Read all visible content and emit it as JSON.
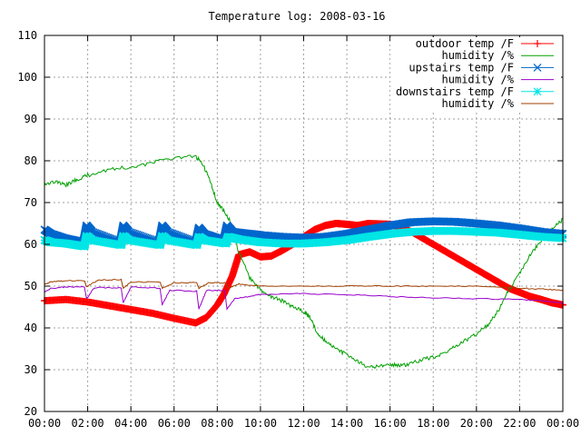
{
  "chart_data": {
    "type": "line",
    "title": "Temperature log: 2008-03-16",
    "xlabel": "",
    "ylabel": "",
    "xlim": [
      0,
      24
    ],
    "ylim": [
      20,
      110
    ],
    "grid": true,
    "legend_position": "top-right",
    "x_tick_labels": [
      "00:00",
      "02:00",
      "04:00",
      "06:00",
      "08:00",
      "10:00",
      "12:00",
      "14:00",
      "16:00",
      "18:00",
      "20:00",
      "22:00",
      "00:00"
    ],
    "y_tick_labels": [
      "20",
      "30",
      "40",
      "50",
      "60",
      "70",
      "80",
      "90",
      "100",
      "110"
    ],
    "series": [
      {
        "name": "outdoor temp /F",
        "color": "#ff0000",
        "marker": "plus",
        "x": [
          0,
          1,
          2,
          3,
          4,
          5,
          6,
          7,
          7.5,
          8,
          8.3,
          8.7,
          9,
          9.5,
          10,
          10.5,
          11,
          11.5,
          12,
          12.5,
          13,
          13.5,
          14,
          14.5,
          15,
          16,
          16.5,
          17,
          17.5,
          18,
          18.5,
          19,
          19.5,
          20,
          20.5,
          21,
          21.5,
          22,
          22.5,
          23,
          23.5,
          24
        ],
        "y": [
          46.5,
          46.8,
          46.2,
          45.3,
          44.4,
          43.5,
          42.3,
          41.2,
          42.5,
          45.5,
          48,
          52.5,
          57.5,
          58.2,
          57,
          57.2,
          58.5,
          60,
          61.8,
          63.5,
          64.5,
          65,
          64.8,
          64.5,
          65,
          64.8,
          64,
          63,
          61.5,
          60,
          58.5,
          57,
          55.5,
          54,
          52.5,
          51,
          49.5,
          48.5,
          47.5,
          46.8,
          46,
          45.5
        ]
      },
      {
        "name": "humidity /%",
        "color": "#00a000",
        "marker": "none",
        "x": [
          0,
          0.5,
          1,
          1.5,
          2,
          3,
          4,
          5,
          6,
          7,
          7.3,
          7.6,
          8,
          8.3,
          8.6,
          9,
          9.5,
          10,
          10.5,
          11,
          11.5,
          12,
          12.3,
          12.6,
          13,
          13.5,
          14,
          14.5,
          15,
          15.5,
          16,
          16.5,
          17,
          17.5,
          18,
          18.5,
          19,
          19.5,
          20,
          20.5,
          21,
          21.5,
          22,
          22.5,
          23,
          23.5,
          24
        ],
        "y": [
          74.5,
          75,
          74.2,
          75.5,
          76.5,
          78,
          78.5,
          79.5,
          80.8,
          81,
          79.5,
          76,
          70,
          68,
          65.5,
          58,
          52,
          49,
          47.5,
          46.5,
          45,
          44,
          42.5,
          39,
          37,
          35,
          33.5,
          32,
          30.5,
          30.8,
          31.2,
          31,
          31.5,
          32.5,
          33,
          34,
          35.5,
          37,
          38.5,
          40.5,
          44,
          49,
          53,
          57.5,
          61,
          63.5,
          66
        ]
      },
      {
        "name": "upstairs temp /F",
        "color": "#0066cc",
        "marker": "x",
        "x": [
          0,
          0.3,
          0.9,
          1.8,
          1.95,
          2.2,
          3.5,
          3.65,
          3.9,
          5.3,
          5.45,
          5.7,
          7,
          7.15,
          7.4,
          8.3,
          8.45,
          8.7,
          9.5,
          10,
          11,
          12,
          13,
          14,
          15,
          16,
          17,
          18,
          19,
          20,
          21,
          22,
          23,
          24
        ],
        "y": [
          63.5,
          62.5,
          61.5,
          60.5,
          64.5,
          63,
          60.5,
          64.5,
          63,
          60.5,
          64.5,
          63,
          60.5,
          64,
          62.5,
          61,
          64.5,
          63,
          62.5,
          62.2,
          61.8,
          61.6,
          61.8,
          62.5,
          63.5,
          64.5,
          65.3,
          65.5,
          65.4,
          65,
          64.5,
          63.8,
          63,
          62.5
        ]
      },
      {
        "name": "humidity /%",
        "color": "#9900cc",
        "marker": "none",
        "x": [
          0,
          0.3,
          1,
          1.85,
          1.95,
          2.3,
          3.55,
          3.65,
          4,
          5.35,
          5.45,
          5.8,
          7.05,
          7.15,
          7.5,
          8.35,
          8.45,
          8.8,
          9.5,
          10,
          12,
          14,
          16,
          18,
          20,
          22,
          23,
          24
        ],
        "y": [
          48.5,
          49.5,
          49.8,
          49.8,
          47,
          49.6,
          49.6,
          46,
          49.8,
          49.5,
          45.5,
          49,
          48.8,
          44.5,
          49,
          49,
          44.5,
          47,
          47.5,
          48,
          48.2,
          48,
          47.5,
          47.2,
          47,
          46.8,
          46.5,
          46
        ]
      },
      {
        "name": "downstairs temp /F",
        "color": "#00e5e5",
        "marker": "star",
        "x": [
          0,
          0.3,
          1,
          1.85,
          1.95,
          2.2,
          3.55,
          3.65,
          3.9,
          5.35,
          5.45,
          5.7,
          7.05,
          7.15,
          7.4,
          8.4,
          8.5,
          9,
          10,
          11,
          12,
          13,
          14,
          15,
          16,
          17,
          18,
          19,
          20,
          21,
          22,
          23,
          24
        ],
        "y": [
          61,
          60.5,
          60.2,
          59.5,
          62,
          61,
          59.8,
          62,
          61,
          59.8,
          62,
          61,
          59.8,
          61.8,
          61,
          60.2,
          61.8,
          61.2,
          60.5,
          60.2,
          60.2,
          60.5,
          61,
          61.8,
          62.5,
          63,
          63.2,
          63.2,
          63,
          62.8,
          62.3,
          61.8,
          61.5
        ]
      },
      {
        "name": "humidity /%",
        "color": "#a04000",
        "marker": "none",
        "x": [
          0,
          0.3,
          1,
          1.85,
          1.95,
          2.5,
          3.55,
          3.65,
          4,
          5.35,
          5.45,
          6,
          7.05,
          7.15,
          7.6,
          8.4,
          8.5,
          9,
          10,
          12,
          14,
          16,
          18,
          20,
          22,
          23,
          24
        ],
        "y": [
          50.5,
          51,
          51.3,
          51.3,
          49.8,
          51.5,
          51.5,
          49.5,
          51,
          51,
          49.5,
          50.8,
          50.8,
          49.5,
          50.8,
          50.8,
          49.5,
          50.5,
          50,
          50,
          50,
          50,
          50,
          50,
          49.5,
          49.3,
          49
        ]
      }
    ]
  }
}
